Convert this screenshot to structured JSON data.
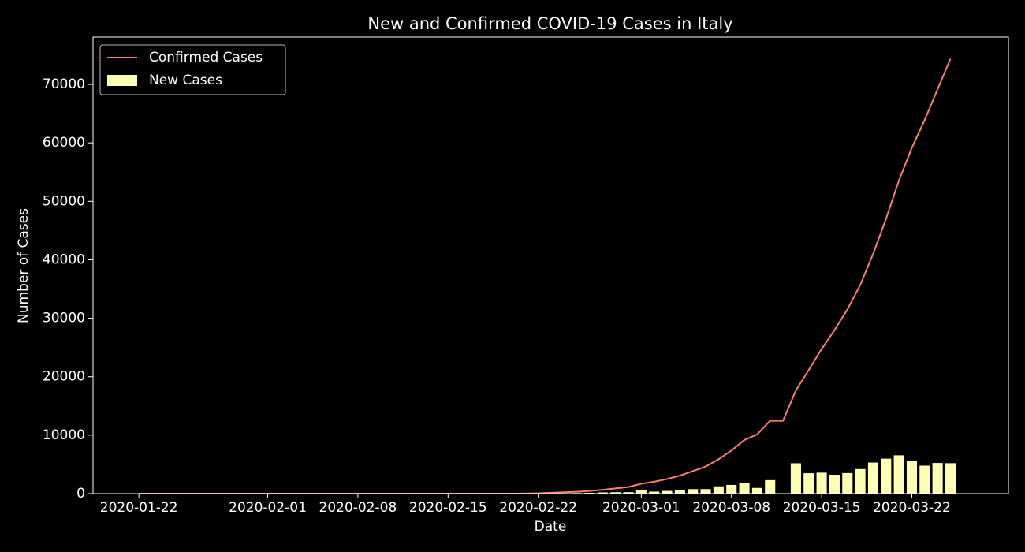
{
  "chart_data": {
    "type": "combo",
    "title": "New and Confirmed COVID-19 Cases in Italy",
    "xlabel": "Date",
    "ylabel": "Number of Cases",
    "x": [
      "2020-01-22",
      "2020-01-23",
      "2020-01-24",
      "2020-01-25",
      "2020-01-26",
      "2020-01-27",
      "2020-01-28",
      "2020-01-29",
      "2020-01-30",
      "2020-01-31",
      "2020-02-01",
      "2020-02-02",
      "2020-02-03",
      "2020-02-04",
      "2020-02-05",
      "2020-02-06",
      "2020-02-07",
      "2020-02-08",
      "2020-02-09",
      "2020-02-10",
      "2020-02-11",
      "2020-02-12",
      "2020-02-13",
      "2020-02-14",
      "2020-02-15",
      "2020-02-16",
      "2020-02-17",
      "2020-02-18",
      "2020-02-19",
      "2020-02-20",
      "2020-02-21",
      "2020-02-22",
      "2020-02-23",
      "2020-02-24",
      "2020-02-25",
      "2020-02-26",
      "2020-02-27",
      "2020-02-28",
      "2020-02-29",
      "2020-03-01",
      "2020-03-02",
      "2020-03-03",
      "2020-03-04",
      "2020-03-05",
      "2020-03-06",
      "2020-03-07",
      "2020-03-08",
      "2020-03-09",
      "2020-03-10",
      "2020-03-11",
      "2020-03-12",
      "2020-03-13",
      "2020-03-14",
      "2020-03-15",
      "2020-03-16",
      "2020-03-17",
      "2020-03-18",
      "2020-03-19",
      "2020-03-20",
      "2020-03-21",
      "2020-03-22",
      "2020-03-23",
      "2020-03-24",
      "2020-03-25"
    ],
    "series": [
      {
        "name": "Confirmed Cases",
        "type": "line",
        "color": "#fa8072",
        "values": [
          0,
          0,
          0,
          0,
          0,
          0,
          0,
          0,
          0,
          2,
          2,
          2,
          2,
          2,
          2,
          3,
          3,
          3,
          3,
          3,
          3,
          3,
          3,
          3,
          3,
          3,
          3,
          3,
          3,
          3,
          20,
          62,
          155,
          229,
          322,
          453,
          655,
          888,
          1128,
          1694,
          2036,
          2502,
          3089,
          3858,
          4636,
          5883,
          7375,
          9172,
          10149,
          12462,
          12462,
          17660,
          21157,
          24747,
          27980,
          31506,
          35713,
          41035,
          47021,
          53578,
          59138,
          63927,
          69176,
          74386
        ]
      },
      {
        "name": "New Cases",
        "type": "bar",
        "color": "#ffffb3",
        "values": [
          0,
          0,
          0,
          0,
          0,
          0,
          0,
          0,
          0,
          2,
          0,
          0,
          0,
          0,
          0,
          1,
          0,
          0,
          0,
          0,
          0,
          0,
          0,
          0,
          0,
          0,
          0,
          0,
          0,
          0,
          17,
          42,
          93,
          74,
          93,
          131,
          202,
          233,
          240,
          566,
          342,
          466,
          587,
          769,
          778,
          1247,
          1492,
          1797,
          977,
          2313,
          0,
          5198,
          3497,
          3590,
          3233,
          3526,
          4207,
          5322,
          5986,
          6557,
          5560,
          4789,
          5249,
          5210
        ]
      }
    ],
    "xlim": [
      "2020-01-18T10:34:00Z",
      "2020-03-29T12:00:00Z"
    ],
    "xticks": [
      "2020-01-22",
      "2020-02-01",
      "2020-02-08",
      "2020-02-15",
      "2020-02-22",
      "2020-03-01",
      "2020-03-08",
      "2020-03-15",
      "2020-03-22"
    ],
    "ylim": [
      0,
      78100
    ],
    "yticks": [
      0,
      10000,
      20000,
      30000,
      40000,
      50000,
      60000,
      70000
    ],
    "legend": "upper left"
  }
}
